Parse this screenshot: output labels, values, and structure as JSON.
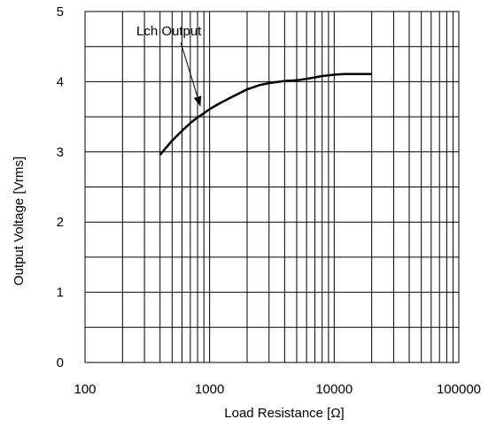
{
  "chart_data": {
    "type": "line",
    "title": "",
    "xlabel": "Load Resistance [Ω]",
    "ylabel": "Output Voltage [Vrms]",
    "x_scale": "log",
    "xlim": [
      100,
      100000
    ],
    "ylim": [
      0,
      5
    ],
    "x_ticks": [
      100,
      1000,
      10000,
      100000
    ],
    "x_tick_labels": [
      "100",
      "1000",
      "10000",
      "100000"
    ],
    "y_ticks": [
      0,
      1,
      2,
      3,
      4,
      5
    ],
    "y_tick_labels": [
      "0",
      "1",
      "2",
      "3",
      "4",
      "5"
    ],
    "grid": true,
    "legend": "none",
    "series": [
      {
        "x": [
          400,
          500,
          600,
          700,
          800,
          900,
          1000,
          1200,
          1500,
          2000,
          2500,
          3000,
          4000,
          5000,
          6000,
          7000,
          8000,
          9000,
          10000,
          12000,
          15000,
          20000
        ],
        "y": [
          2.96,
          3.16,
          3.3,
          3.41,
          3.49,
          3.55,
          3.61,
          3.69,
          3.78,
          3.89,
          3.95,
          3.98,
          4.01,
          4.02,
          4.04,
          4.06,
          4.08,
          4.09,
          4.1,
          4.11,
          4.11,
          4.11
        ]
      }
    ],
    "annotations": [
      {
        "text": "Lch Output",
        "target_x": 900,
        "target_y": 3.55
      }
    ]
  },
  "colors": {
    "line": "#000000",
    "grid": "#000000",
    "background": "#ffffff"
  }
}
